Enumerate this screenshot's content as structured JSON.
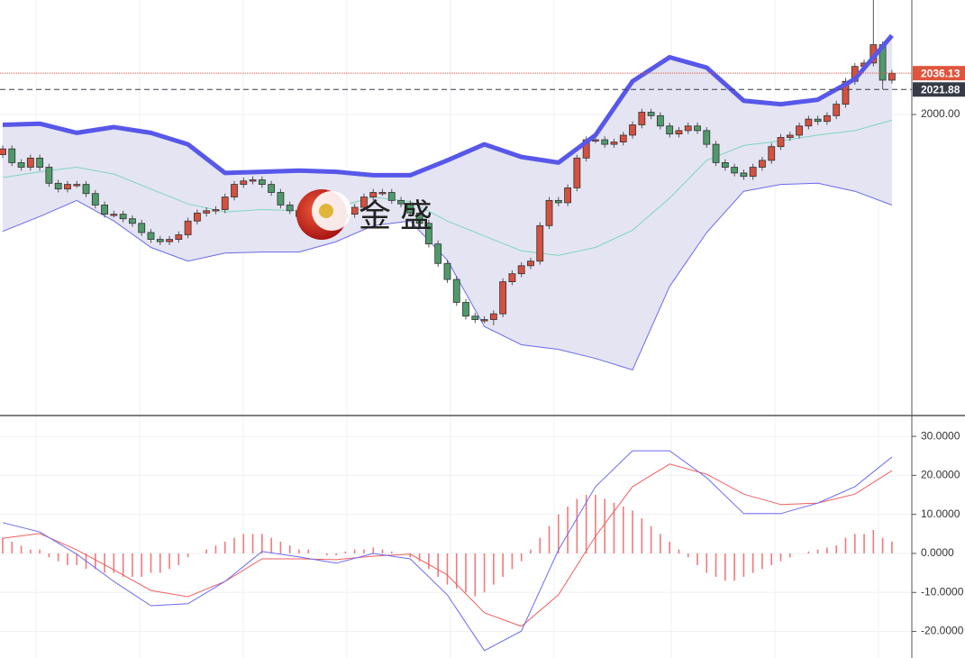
{
  "chart_data": [
    {
      "type": "candlestick",
      "open": [
        1965,
        1970,
        1958,
        1954,
        1962,
        1954,
        1940,
        1935,
        1939,
        1939,
        1931,
        1921,
        1913,
        1913,
        1909,
        1905,
        1897,
        1891,
        1889,
        1891,
        1895,
        1907,
        1914,
        1916,
        1917,
        1928,
        1939,
        1942,
        1943,
        1939,
        1932,
        1921,
        1916,
        1911,
        1909,
        1911,
        1911,
        1910,
        1913,
        1919,
        1928,
        1932,
        1932,
        1925,
        1922,
        1914,
        1905,
        1887,
        1870,
        1856,
        1836,
        1824,
        1821,
        1821,
        1826,
        1854,
        1861,
        1868,
        1872,
        1903,
        1925,
        1923,
        1936,
        1962,
        1978,
        1978,
        1974,
        1976,
        1982,
        1991,
        2002,
        1999,
        1990,
        1983,
        1986,
        1990,
        1986,
        1974,
        1958,
        1954,
        1949,
        1946,
        1954,
        1960,
        1972,
        1980,
        1982,
        1990,
        1996,
        1994,
        1999,
        2009,
        2029,
        2042,
        2045,
        2061,
        2030
      ],
      "high": [
        1973,
        1973,
        1961,
        1965,
        1965,
        1957,
        1943,
        1942,
        1942,
        1942,
        1934,
        1924,
        1916,
        1916,
        1912,
        1908,
        1900,
        1894,
        1894,
        1898,
        1910,
        1917,
        1919,
        1920,
        1931,
        1942,
        1945,
        1946,
        1946,
        1942,
        1935,
        1924,
        1919,
        1914,
        1914,
        1914,
        1914,
        1916,
        1922,
        1931,
        1935,
        1935,
        1935,
        1928,
        1925,
        1917,
        1908,
        1890,
        1873,
        1859,
        1839,
        1827,
        1824,
        1829,
        1857,
        1864,
        1871,
        1875,
        1906,
        1928,
        1928,
        1939,
        1965,
        1981,
        1981,
        1981,
        1979,
        1985,
        1994,
        2005,
        2005,
        2002,
        1993,
        1989,
        1993,
        1993,
        1989,
        1977,
        1961,
        1957,
        1952,
        1957,
        1963,
        1975,
        1983,
        1985,
        1993,
        1999,
        1999,
        2002,
        2012,
        2032,
        2045,
        2048,
        2100,
        2064,
        2039
      ],
      "low": [
        1962,
        1955,
        1951,
        1951,
        1951,
        1937,
        1932,
        1932,
        1936,
        1928,
        1918,
        1910,
        1910,
        1906,
        1902,
        1894,
        1888,
        1886,
        1886,
        1888,
        1892,
        1904,
        1911,
        1913,
        1914,
        1925,
        1936,
        1939,
        1936,
        1929,
        1918,
        1913,
        1908,
        1906,
        1906,
        1908,
        1907,
        1907,
        1910,
        1916,
        1925,
        1929,
        1922,
        1919,
        1911,
        1902,
        1884,
        1867,
        1853,
        1833,
        1821,
        1818,
        1818,
        1816,
        1823,
        1851,
        1858,
        1865,
        1869,
        1900,
        1920,
        1920,
        1933,
        1959,
        1975,
        1971,
        1971,
        1973,
        1979,
        1988,
        1996,
        1987,
        1980,
        1980,
        1983,
        1983,
        1971,
        1955,
        1951,
        1946,
        1943,
        1943,
        1951,
        1957,
        1969,
        1977,
        1979,
        1987,
        1991,
        1991,
        1996,
        2006,
        2026,
        2039,
        2042,
        2022,
        2027
      ],
      "close": [
        1970,
        1958,
        1954,
        1962,
        1954,
        1940,
        1935,
        1939,
        1939,
        1931,
        1921,
        1913,
        1913,
        1909,
        1905,
        1897,
        1891,
        1889,
        1891,
        1895,
        1907,
        1914,
        1916,
        1917,
        1928,
        1939,
        1942,
        1943,
        1939,
        1932,
        1921,
        1916,
        1911,
        1909,
        1911,
        1911,
        1910,
        1913,
        1919,
        1928,
        1932,
        1932,
        1925,
        1922,
        1914,
        1905,
        1887,
        1870,
        1856,
        1836,
        1824,
        1821,
        1821,
        1826,
        1854,
        1861,
        1868,
        1872,
        1903,
        1925,
        1923,
        1936,
        1962,
        1978,
        1978,
        1974,
        1976,
        1982,
        1991,
        2002,
        1999,
        1990,
        1983,
        1986,
        1990,
        1986,
        1974,
        1958,
        1954,
        1949,
        1946,
        1954,
        1960,
        1972,
        1980,
        1982,
        1990,
        1996,
        1994,
        1999,
        2009,
        2029,
        2042,
        2045,
        2061,
        2030,
        2036
      ],
      "up_color": "#d4503f",
      "down_color": "#4f9a6b",
      "ylim": [
        1738,
        2100
      ],
      "yticks": [
        {
          "value": 2000,
          "label": "2000.00"
        }
      ],
      "bands": {
        "x": [
          0,
          4,
          8,
          12,
          16,
          20,
          24,
          28,
          32,
          36,
          40,
          44,
          48,
          52,
          56,
          60,
          64,
          68,
          72,
          76,
          80,
          84,
          88,
          92,
          96
        ],
        "upper": [
          1991,
          1992,
          1984,
          1989,
          1984,
          1974,
          1949,
          1950,
          1951,
          1950,
          1947,
          1947,
          1960,
          1974,
          1963,
          1958,
          1982,
          2029,
          2050,
          2041,
          2012,
          2009,
          2013,
          2031,
          2069
        ],
        "middle": [
          1945,
          1950,
          1954,
          1948,
          1935,
          1922,
          1915,
          1917,
          1916,
          1919,
          1928,
          1924,
          1907,
          1894,
          1881,
          1877,
          1884,
          1899,
          1927,
          1960,
          1973,
          1977,
          1982,
          1986,
          1995
        ],
        "lower": [
          1898,
          1911,
          1925,
          1907,
          1884,
          1872,
          1879,
          1880,
          1880,
          1889,
          1903,
          1907,
          1873,
          1815,
          1799,
          1795,
          1787,
          1777,
          1850,
          1897,
          1933,
          1939,
          1940,
          1933,
          1921
        ],
        "upper_color": "#5757ea",
        "middle_color": "#7ed6bd",
        "lower_color": "#6a6aee",
        "fill": "#e4e4f2"
      },
      "price_lines": [
        {
          "value": 2036.13,
          "color": "#e0553d"
        },
        {
          "value": 2021.88,
          "color": "#363b46"
        }
      ],
      "watermark": "金 盛"
    },
    {
      "type": "macd",
      "x": [
        0,
        4,
        8,
        12,
        16,
        20,
        24,
        28,
        32,
        36,
        40,
        44,
        48,
        52,
        56,
        60,
        64,
        68,
        72,
        76,
        80,
        84,
        88,
        92,
        96
      ],
      "dif": [
        7.9,
        5.5,
        -0.2,
        -7.2,
        -13.4,
        -12.9,
        -7.2,
        0.5,
        -0.9,
        -2.5,
        0,
        -1.4,
        -10.6,
        -24.9,
        -19.9,
        0.9,
        17.1,
        26.3,
        26.3,
        19.4,
        10.2,
        10.2,
        12.9,
        17.1,
        24.7
      ],
      "dea": [
        3.9,
        5.1,
        0.9,
        -4.2,
        -9.5,
        -11.1,
        -7.2,
        -1.4,
        -1.4,
        -1.6,
        -0.7,
        -0.2,
        -5.5,
        -15.2,
        -18.7,
        -10.6,
        4.4,
        17.1,
        22.9,
        20.3,
        15.2,
        12.5,
        12.9,
        15.2,
        21.2
      ],
      "histogram": [
        4,
        3,
        2,
        1,
        1,
        -1,
        -2,
        -3,
        -3,
        -4,
        -4,
        -5,
        -5,
        -6,
        -6,
        -6,
        -5,
        -5,
        -4,
        -3,
        -1,
        0,
        1,
        2,
        3,
        4,
        5,
        5,
        5,
        4,
        3,
        2,
        1,
        1,
        0,
        -0.5,
        -0.5,
        0.5,
        1,
        1,
        1.5,
        1,
        0.5,
        0,
        -1,
        -2,
        -4,
        -6,
        -8,
        -9,
        -10,
        -11,
        -10,
        -8,
        -6,
        -4,
        -2,
        1,
        4,
        7,
        10,
        12,
        14,
        15,
        15,
        14,
        13,
        12,
        11,
        9,
        7,
        5,
        3,
        1,
        -1,
        -3,
        -5,
        -6,
        -7,
        -7,
        -6,
        -5,
        -4,
        -3,
        -2,
        -1,
        0,
        0.5,
        1,
        1.5,
        2,
        4,
        5,
        5,
        6,
        4,
        3
      ],
      "dif_color": "#6b6bf2",
      "dea_color": "#ef5f5f",
      "histogram_color": "#f07a7a",
      "ylim": [
        -26.8,
        35.1
      ],
      "yticks": [
        {
          "value": 30,
          "label": "30.0000"
        },
        {
          "value": 20,
          "label": "20.0000"
        },
        {
          "value": 10,
          "label": "10.0000"
        },
        {
          "value": 0,
          "label": "0.0000"
        },
        {
          "value": -10,
          "label": "-10.0000"
        },
        {
          "value": -20,
          "label": "-20.0000"
        }
      ]
    }
  ]
}
